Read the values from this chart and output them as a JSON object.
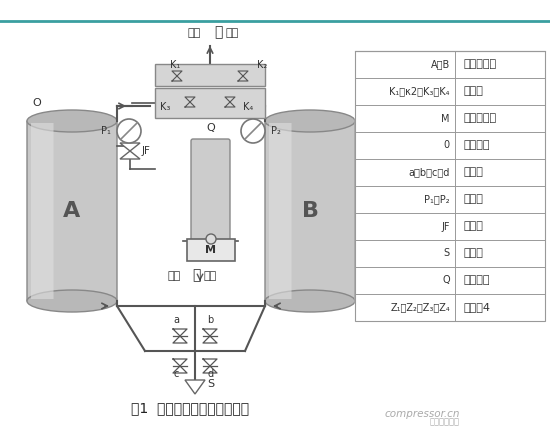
{
  "title": "图1  微热吸附式干燥机结构图",
  "watermark1": "compressor.cn",
  "watermark2": "中国压缩机网",
  "top_line_color": "#3a9fa0",
  "bg_color": "#ffffff",
  "diagram_bg": "#f8f8f8",
  "tank_face_color": "#c0bfbf",
  "tank_edge_color": "#888888",
  "pipe_color": "#555555",
  "text_color": "#333333",
  "table_line_color": "#999999",
  "rows": [
    [
      "A、B",
      "吸附干燥筒"
    ],
    [
      "K₁、κ2、K₃、K₄",
      "单向阀"
    ],
    [
      "M",
      "程序控制器"
    ],
    [
      "0",
      "电磁阀组"
    ],
    [
      "a、b、c、d",
      "气动阀"
    ],
    [
      "P₁、P₂",
      "压力表"
    ],
    [
      "JF",
      "调节器"
    ],
    [
      "S",
      "消音器"
    ],
    [
      "Q",
      "电加热器"
    ],
    [
      "Z₁、Z₂、Z₃、Z₄",
      "扩散器4"
    ]
  ],
  "fig_width": 5.5,
  "fig_height": 4.36,
  "dpi": 100
}
